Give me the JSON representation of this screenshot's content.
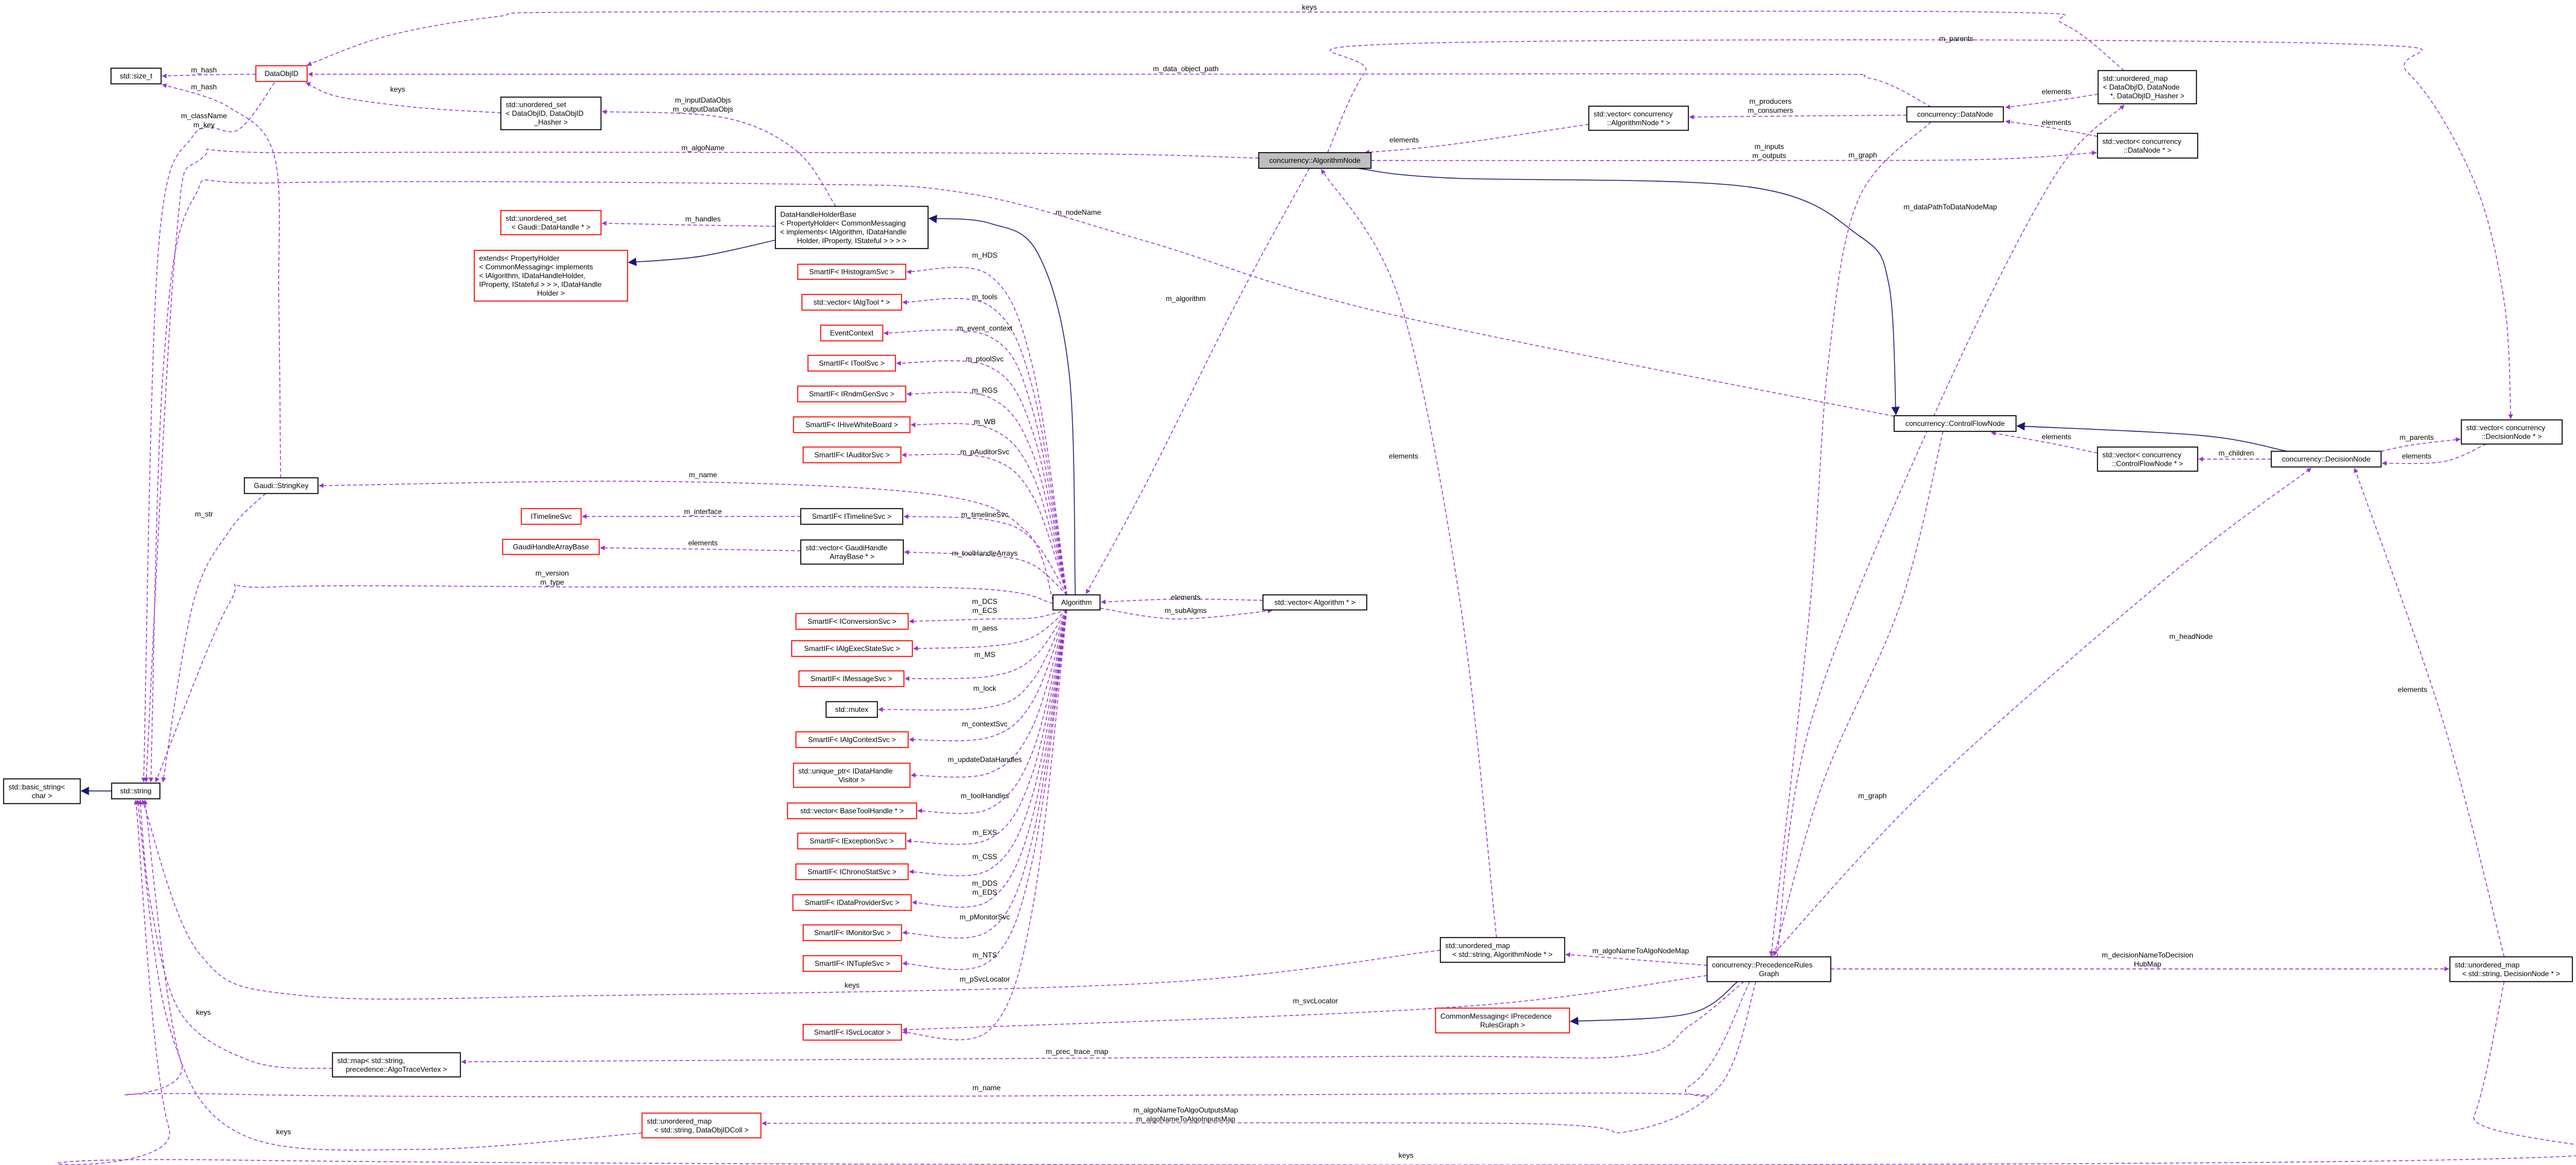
{
  "colors": {
    "usage_edge": "#9a32cd",
    "inheritance_edge": "#191970",
    "incomplete_border": "#ff0000",
    "normal_border": "#000000",
    "focus_fill": "#bfbfbf"
  },
  "focus_node": "algnode",
  "nodes": [
    {
      "id": "size_t",
      "lines": [
        "std::size_t"
      ],
      "border": "black"
    },
    {
      "id": "dataobjid",
      "lines": [
        "DataObjID"
      ],
      "border": "red"
    },
    {
      "id": "uset_doid",
      "lines": [
        "std::unordered_set",
        "< DataObjID, DataObjID",
        "_Hasher >"
      ],
      "border": "black"
    },
    {
      "id": "uset_dh",
      "lines": [
        "std::unordered_set",
        "< Gaudi::DataHandle * >"
      ],
      "border": "red"
    },
    {
      "id": "extends",
      "lines": [
        "extends< PropertyHolder",
        "< CommonMessaging< implements",
        "< IAlgorithm, IDataHandleHolder,",
        " IProperty, IStateful > > >, IDataHandle",
        "Holder >"
      ],
      "border": "red"
    },
    {
      "id": "dhhb",
      "lines": [
        "DataHandleHolderBase",
        "< PropertyHolder< CommonMessaging",
        "< implements< IAlgorithm, IDataHandle",
        "Holder, IProperty, IStateful > > > >"
      ],
      "border": "black"
    },
    {
      "id": "hist",
      "lines": [
        "SmartIF< IHistogramSvc >"
      ],
      "border": "red"
    },
    {
      "id": "algtool",
      "lines": [
        "std::vector< IAlgTool * >"
      ],
      "border": "red"
    },
    {
      "id": "evctx",
      "lines": [
        "EventContext"
      ],
      "border": "red"
    },
    {
      "id": "toolsvc",
      "lines": [
        "SmartIF< IToolSvc >"
      ],
      "border": "red"
    },
    {
      "id": "rndm",
      "lines": [
        "SmartIF< IRndmGenSvc >"
      ],
      "border": "red"
    },
    {
      "id": "wb",
      "lines": [
        "SmartIF< IHiveWhiteBoard >"
      ],
      "border": "red"
    },
    {
      "id": "auditor",
      "lines": [
        "SmartIF< IAuditorSvc >"
      ],
      "border": "red"
    },
    {
      "id": "stringkey",
      "lines": [
        "Gaudi::StringKey"
      ],
      "border": "black"
    },
    {
      "id": "itimeline",
      "lines": [
        "ITimelineSvc"
      ],
      "border": "red"
    },
    {
      "id": "sitimeline",
      "lines": [
        "SmartIF< ITimelineSvc >"
      ],
      "border": "black"
    },
    {
      "id": "ghab",
      "lines": [
        "GaudiHandleArrayBase"
      ],
      "border": "red"
    },
    {
      "id": "vghab",
      "lines": [
        "std::vector< GaudiHandle",
        "ArrayBase * >"
      ],
      "border": "black"
    },
    {
      "id": "algorithm",
      "lines": [
        "Algorithm"
      ],
      "border": "black"
    },
    {
      "id": "valg",
      "lines": [
        "std::vector< Algorithm * >"
      ],
      "border": "black"
    },
    {
      "id": "conv",
      "lines": [
        "SmartIF< IConversionSvc >"
      ],
      "border": "red"
    },
    {
      "id": "aess",
      "lines": [
        "SmartIF< IAlgExecStateSvc >"
      ],
      "border": "red"
    },
    {
      "id": "msg",
      "lines": [
        "SmartIF< IMessageSvc >"
      ],
      "border": "red"
    },
    {
      "id": "mutex",
      "lines": [
        "std::mutex"
      ],
      "border": "black"
    },
    {
      "id": "ctx",
      "lines": [
        "SmartIF< IAlgContextSvc >"
      ],
      "border": "red"
    },
    {
      "id": "uptr",
      "lines": [
        "std::unique_ptr< IDataHandle",
        "Visitor >"
      ],
      "border": "red"
    },
    {
      "id": "btool",
      "lines": [
        "std::vector< BaseToolHandle * >"
      ],
      "border": "red"
    },
    {
      "id": "exc",
      "lines": [
        "SmartIF< IExceptionSvc >"
      ],
      "border": "red"
    },
    {
      "id": "chrono",
      "lines": [
        "SmartIF< IChronoStatSvc >"
      ],
      "border": "red"
    },
    {
      "id": "dps",
      "lines": [
        "SmartIF< IDataProviderSvc >"
      ],
      "border": "red"
    },
    {
      "id": "mon",
      "lines": [
        "SmartIF< IMonitorSvc >"
      ],
      "border": "red"
    },
    {
      "id": "ntuple",
      "lines": [
        "SmartIF< INTupleSvc >"
      ],
      "border": "red"
    },
    {
      "id": "svcloc",
      "lines": [
        "SmartIF< ISvcLocator >"
      ],
      "border": "red"
    },
    {
      "id": "basicstr",
      "lines": [
        "std::basic_string<",
        "char >"
      ],
      "border": "black"
    },
    {
      "id": "string",
      "lines": [
        "std::string"
      ],
      "border": "black"
    },
    {
      "id": "stdmap",
      "lines": [
        "std::map< std::string,",
        " precedence::AlgoTraceVertex >"
      ],
      "border": "black"
    },
    {
      "id": "umap_coll",
      "lines": [
        "std::unordered_map",
        "< std::string, DataObjIDColl >"
      ],
      "border": "red"
    },
    {
      "id": "algnode",
      "lines": [
        "concurrency::AlgorithmNode"
      ],
      "border": "black"
    },
    {
      "id": "valgnode",
      "lines": [
        "std::vector< concurrency",
        "::AlgorithmNode * >"
      ],
      "border": "black"
    },
    {
      "id": "datanode",
      "lines": [
        "concurrency::DataNode"
      ],
      "border": "black"
    },
    {
      "id": "umap_dn",
      "lines": [
        "std::unordered_map",
        "< DataObjID, DataNode",
        " *, DataObjID_Hasher >"
      ],
      "border": "black"
    },
    {
      "id": "vdn",
      "lines": [
        "std::vector< concurrency",
        "::DataNode * >"
      ],
      "border": "black"
    },
    {
      "id": "cfn",
      "lines": [
        "concurrency::ControlFlowNode"
      ],
      "border": "black"
    },
    {
      "id": "vcfn",
      "lines": [
        "std::vector< concurrency",
        "::ControlFlowNode * >"
      ],
      "border": "black"
    },
    {
      "id": "decnode",
      "lines": [
        "concurrency::DecisionNode"
      ],
      "border": "black"
    },
    {
      "id": "vdec",
      "lines": [
        "std::vector< concurrency",
        "::DecisionNode * >"
      ],
      "border": "black"
    },
    {
      "id": "umap_an",
      "lines": [
        "std::unordered_map",
        "< std::string, AlgorithmNode * >"
      ],
      "border": "black"
    },
    {
      "id": "prg",
      "lines": [
        "concurrency::PrecedenceRules",
        "Graph"
      ],
      "border": "black"
    },
    {
      "id": "cmprg",
      "lines": [
        "CommonMessaging< IPrecedence",
        "RulesGraph >"
      ],
      "border": "red"
    },
    {
      "id": "umap_dec",
      "lines": [
        "std::unordered_map",
        "< std::string, DecisionNode * >"
      ],
      "border": "black"
    }
  ],
  "edges": [
    {
      "from": "dataobjid",
      "to": "size_t",
      "labels": [
        "m_hash"
      ],
      "type": "usage"
    },
    {
      "from": "stringkey",
      "to": "size_t",
      "labels": [
        "m_hash"
      ],
      "type": "usage"
    },
    {
      "from": "dataobjid",
      "to": "string",
      "labels": [
        "m_className",
        "m_key"
      ],
      "type": "usage"
    },
    {
      "from": "uset_doid",
      "to": "dataobjid",
      "labels": [
        "keys"
      ],
      "type": "usage"
    },
    {
      "from": "dhhb",
      "to": "uset_doid",
      "labels": [
        "m_inputDataObjs",
        "m_outputDataObjs"
      ],
      "type": "usage"
    },
    {
      "from": "dhhb",
      "to": "uset_dh",
      "labels": [
        "m_handles"
      ],
      "type": "usage"
    },
    {
      "from": "dhhb",
      "to": "extends",
      "labels": [],
      "type": "inheritance"
    },
    {
      "from": "algorithm",
      "to": "dhhb",
      "labels": [],
      "type": "inheritance"
    },
    {
      "from": "umap_dn",
      "to": "dataobjid",
      "labels": [
        "keys"
      ],
      "type": "usage"
    },
    {
      "from": "datanode",
      "to": "dataobjid",
      "labels": [
        "m_data_object_path"
      ],
      "type": "usage"
    },
    {
      "from": "algnode",
      "to": "string",
      "labels": [
        "m_algoName"
      ],
      "type": "usage"
    },
    {
      "from": "cfn",
      "to": "string",
      "labels": [
        "m_nodeName"
      ],
      "type": "usage"
    },
    {
      "from": "valgnode",
      "to": "algnode",
      "labels": [
        "elements"
      ],
      "type": "usage"
    },
    {
      "from": "datanode",
      "to": "valgnode",
      "labels": [
        "m_producers",
        "m_consumers"
      ],
      "type": "usage"
    },
    {
      "from": "algnode",
      "to": "vdn",
      "labels": [
        "m_inputs",
        "m_outputs"
      ],
      "type": "usage"
    },
    {
      "from": "umap_dn",
      "to": "datanode",
      "labels": [
        "elements"
      ],
      "type": "usage"
    },
    {
      "from": "vdn",
      "to": "datanode",
      "labels": [
        "elements"
      ],
      "type": "usage"
    },
    {
      "from": "algnode",
      "to": "vdec",
      "labels": [
        "m_parents"
      ],
      "type": "usage"
    },
    {
      "from": "algnode",
      "to": "cfn",
      "labels": [],
      "type": "inheritance"
    },
    {
      "from": "decnode",
      "to": "cfn",
      "labels": [],
      "type": "inheritance"
    },
    {
      "from": "algnode",
      "to": "algorithm",
      "labels": [
        "m_algorithm"
      ],
      "type": "usage"
    },
    {
      "from": "umap_an",
      "to": "algnode",
      "labels": [
        "elements"
      ],
      "type": "usage"
    },
    {
      "from": "datanode",
      "to": "prg",
      "labels": [
        "m_graph"
      ],
      "type": "usage"
    },
    {
      "from": "prg",
      "to": "umap_dn",
      "labels": [
        "m_dataPathToDataNodeMap"
      ],
      "type": "usage"
    },
    {
      "from": "cfn",
      "to": "prg",
      "labels": [
        "m_graph"
      ],
      "type": "usage"
    },
    {
      "from": "vcfn",
      "to": "cfn",
      "labels": [
        "elements"
      ],
      "type": "usage"
    },
    {
      "from": "decnode",
      "to": "vcfn",
      "labels": [
        "m_children"
      ],
      "type": "usage"
    },
    {
      "from": "vdec",
      "to": "decnode",
      "labels": [
        "elements"
      ],
      "type": "usage"
    },
    {
      "from": "decnode",
      "to": "vdec",
      "labels": [
        "m_parents"
      ],
      "type": "usage"
    },
    {
      "from": "prg",
      "to": "decnode",
      "labels": [
        "m_headNode"
      ],
      "type": "usage"
    },
    {
      "from": "umap_dec",
      "to": "decnode",
      "labels": [
        "elements"
      ],
      "type": "usage"
    },
    {
      "from": "prg",
      "to": "umap_dec",
      "labels": [
        "m_decisionNameToDecision",
        "HubMap"
      ],
      "type": "usage"
    },
    {
      "from": "prg",
      "to": "umap_an",
      "labels": [
        "m_algoNameToAlgoNodeMap"
      ],
      "type": "usage"
    },
    {
      "from": "prg",
      "to": "svcloc",
      "labels": [
        "m_svcLocator"
      ],
      "type": "usage"
    },
    {
      "from": "prg",
      "to": "cmprg",
      "labels": [],
      "type": "inheritance"
    },
    {
      "from": "prg",
      "to": "stdmap",
      "labels": [
        "m_prec_trace_map"
      ],
      "type": "usage"
    },
    {
      "from": "prg",
      "to": "string",
      "labels": [
        "m_name"
      ],
      "type": "usage"
    },
    {
      "from": "prg",
      "to": "umap_coll",
      "labels": [
        "m_algoNameToAlgoOutputsMap",
        "m_algoNameToAlgoInputsMap"
      ],
      "type": "usage"
    },
    {
      "from": "umap_dec",
      "to": "string",
      "labels": [
        "keys"
      ],
      "type": "usage"
    },
    {
      "from": "umap_coll",
      "to": "string",
      "labels": [
        "keys"
      ],
      "type": "usage"
    },
    {
      "from": "stdmap",
      "to": "string",
      "labels": [
        "keys"
      ],
      "type": "usage"
    },
    {
      "from": "umap_an",
      "to": "string",
      "labels": [
        "keys"
      ],
      "type": "usage"
    },
    {
      "from": "string",
      "to": "basicstr",
      "labels": [],
      "type": "inheritance"
    },
    {
      "from": "stringkey",
      "to": "string",
      "labels": [
        "m_str"
      ],
      "type": "usage"
    },
    {
      "from": "algorithm",
      "to": "stringkey",
      "labels": [
        "m_name"
      ],
      "type": "usage"
    },
    {
      "from": "algorithm",
      "to": "string",
      "labels": [
        "m_version",
        "m_type"
      ],
      "type": "usage"
    },
    {
      "from": "sitimeline",
      "to": "itimeline",
      "labels": [
        "m_interface"
      ],
      "type": "usage"
    },
    {
      "from": "vghab",
      "to": "ghab",
      "labels": [
        "elements"
      ],
      "type": "usage"
    },
    {
      "from": "valg",
      "to": "algorithm",
      "labels": [
        "elements"
      ],
      "type": "usage"
    },
    {
      "from": "algorithm",
      "to": "valg",
      "labels": [
        "m_subAlgms"
      ],
      "type": "usage"
    },
    {
      "from": "algorithm",
      "to": "hist",
      "labels": [
        "m_HDS"
      ],
      "type": "usage"
    },
    {
      "from": "algorithm",
      "to": "algtool",
      "labels": [
        "m_tools"
      ],
      "type": "usage"
    },
    {
      "from": "algorithm",
      "to": "evctx",
      "labels": [
        "m_event_context"
      ],
      "type": "usage"
    },
    {
      "from": "algorithm",
      "to": "toolsvc",
      "labels": [
        "m_ptoolSvc"
      ],
      "type": "usage"
    },
    {
      "from": "algorithm",
      "to": "rndm",
      "labels": [
        "m_RGS"
      ],
      "type": "usage"
    },
    {
      "from": "algorithm",
      "to": "wb",
      "labels": [
        "m_WB"
      ],
      "type": "usage"
    },
    {
      "from": "algorithm",
      "to": "auditor",
      "labels": [
        "m_pAuditorSvc"
      ],
      "type": "usage"
    },
    {
      "from": "algorithm",
      "to": "sitimeline",
      "labels": [
        "m_timelineSvc"
      ],
      "type": "usage"
    },
    {
      "from": "algorithm",
      "to": "vghab",
      "labels": [
        "m_toolHandleArrays"
      ],
      "type": "usage"
    },
    {
      "from": "algorithm",
      "to": "conv",
      "labels": [
        "m_DCS",
        "m_ECS"
      ],
      "type": "usage"
    },
    {
      "from": "algorithm",
      "to": "aess",
      "labels": [
        "m_aess"
      ],
      "type": "usage"
    },
    {
      "from": "algorithm",
      "to": "msg",
      "labels": [
        "m_MS"
      ],
      "type": "usage"
    },
    {
      "from": "algorithm",
      "to": "mutex",
      "labels": [
        "m_lock"
      ],
      "type": "usage"
    },
    {
      "from": "algorithm",
      "to": "ctx",
      "labels": [
        "m_contextSvc"
      ],
      "type": "usage"
    },
    {
      "from": "algorithm",
      "to": "uptr",
      "labels": [
        "m_updateDataHandles"
      ],
      "type": "usage"
    },
    {
      "from": "algorithm",
      "to": "btool",
      "labels": [
        "m_toolHandles"
      ],
      "type": "usage"
    },
    {
      "from": "algorithm",
      "to": "exc",
      "labels": [
        "m_EXS"
      ],
      "type": "usage"
    },
    {
      "from": "algorithm",
      "to": "chrono",
      "labels": [
        "m_CSS"
      ],
      "type": "usage"
    },
    {
      "from": "algorithm",
      "to": "dps",
      "labels": [
        "m_DDS",
        "m_EDS"
      ],
      "type": "usage"
    },
    {
      "from": "algorithm",
      "to": "mon",
      "labels": [
        "m_pMonitorSvc"
      ],
      "type": "usage"
    },
    {
      "from": "algorithm",
      "to": "ntuple",
      "labels": [
        "m_NTS"
      ],
      "type": "usage"
    },
    {
      "from": "algorithm",
      "to": "svcloc",
      "labels": [
        "m_pSvcLocator"
      ],
      "type": "usage"
    }
  ]
}
